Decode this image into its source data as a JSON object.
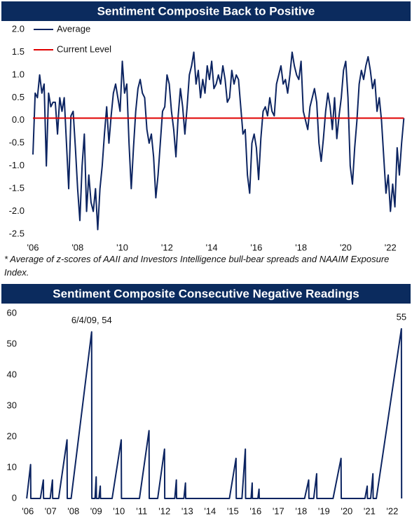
{
  "chart_data": [
    {
      "type": "line",
      "title": "Sentiment Composite Back to Positive",
      "footnote": "* Average of z-scores of AAII and Investors Intelligence bull-bear spreads and NAAIM Exposure Index.",
      "x": [
        2006.0,
        2006.1,
        2006.2,
        2006.3,
        2006.4,
        2006.5,
        2006.6,
        2006.7,
        2006.8,
        2006.9,
        2007.0,
        2007.1,
        2007.2,
        2007.3,
        2007.4,
        2007.5,
        2007.6,
        2007.7,
        2007.8,
        2007.9,
        2008.0,
        2008.1,
        2008.2,
        2008.3,
        2008.4,
        2008.5,
        2008.6,
        2008.7,
        2008.8,
        2008.9,
        2009.0,
        2009.1,
        2009.2,
        2009.3,
        2009.4,
        2009.5,
        2009.6,
        2009.7,
        2009.8,
        2009.9,
        2010.0,
        2010.1,
        2010.2,
        2010.3,
        2010.4,
        2010.5,
        2010.6,
        2010.7,
        2010.8,
        2010.9,
        2011.0,
        2011.1,
        2011.2,
        2011.3,
        2011.4,
        2011.5,
        2011.6,
        2011.7,
        2011.8,
        2011.9,
        2012.0,
        2012.1,
        2012.2,
        2012.3,
        2012.4,
        2012.5,
        2012.6,
        2012.7,
        2012.8,
        2012.9,
        2013.0,
        2013.1,
        2013.2,
        2013.3,
        2013.4,
        2013.5,
        2013.6,
        2013.7,
        2013.8,
        2013.9,
        2014.0,
        2014.1,
        2014.2,
        2014.3,
        2014.4,
        2014.5,
        2014.6,
        2014.7,
        2014.8,
        2014.9,
        2015.0,
        2015.1,
        2015.2,
        2015.3,
        2015.4,
        2015.5,
        2015.6,
        2015.7,
        2015.8,
        2015.9,
        2016.0,
        2016.1,
        2016.2,
        2016.3,
        2016.4,
        2016.5,
        2016.6,
        2016.7,
        2016.8,
        2016.9,
        2017.0,
        2017.1,
        2017.2,
        2017.3,
        2017.4,
        2017.5,
        2017.6,
        2017.7,
        2017.8,
        2017.9,
        2018.0,
        2018.1,
        2018.2,
        2018.3,
        2018.4,
        2018.5,
        2018.6,
        2018.7,
        2018.8,
        2018.9,
        2019.0,
        2019.1,
        2019.2,
        2019.3,
        2019.4,
        2019.5,
        2019.6,
        2019.7,
        2019.8,
        2019.9,
        2020.0,
        2020.1,
        2020.2,
        2020.3,
        2020.4,
        2020.5,
        2020.6,
        2020.7,
        2020.8,
        2020.9,
        2021.0,
        2021.1,
        2021.2,
        2021.3,
        2021.4,
        2021.5,
        2021.6,
        2021.7,
        2021.8,
        2021.9,
        2022.0,
        2022.1,
        2022.2,
        2022.3,
        2022.4,
        2022.5,
        2022.6
      ],
      "series": [
        {
          "name": "Average",
          "color": "#0c2461",
          "values": [
            -0.75,
            0.6,
            0.5,
            1.0,
            0.6,
            0.8,
            -1.0,
            0.6,
            0.3,
            0.4,
            0.4,
            -0.3,
            0.5,
            0.2,
            0.5,
            -0.5,
            -1.5,
            0.1,
            0.2,
            -0.6,
            -1.5,
            -2.2,
            -1.0,
            -0.3,
            -2.0,
            -1.2,
            -1.8,
            -2.0,
            -1.5,
            -2.4,
            -1.5,
            -1.0,
            -0.3,
            0.3,
            -0.5,
            0.1,
            0.6,
            0.8,
            0.5,
            0.2,
            1.3,
            0.6,
            0.8,
            -0.5,
            -1.5,
            -0.6,
            0.2,
            0.7,
            0.9,
            0.6,
            0.5,
            -0.2,
            -0.5,
            -0.3,
            -0.8,
            -1.7,
            -1.2,
            -0.5,
            0.2,
            0.3,
            1.0,
            0.8,
            0.2,
            -0.2,
            -0.8,
            0.1,
            0.7,
            0.3,
            -0.3,
            0.3,
            1.0,
            1.2,
            1.5,
            0.8,
            1.1,
            0.5,
            0.9,
            0.6,
            1.2,
            0.9,
            1.3,
            0.7,
            0.8,
            1.0,
            0.8,
            1.2,
            0.9,
            0.4,
            0.5,
            1.1,
            0.8,
            1.0,
            0.9,
            0.3,
            -0.3,
            -0.2,
            -1.2,
            -1.6,
            -0.5,
            -0.3,
            -0.6,
            -1.3,
            -0.4,
            0.2,
            0.3,
            0.1,
            0.5,
            0.2,
            0.1,
            0.8,
            1.0,
            1.2,
            0.8,
            0.9,
            0.6,
            1.0,
            1.5,
            1.2,
            1.0,
            0.9,
            1.3,
            0.2,
            0.0,
            -0.2,
            0.3,
            0.5,
            0.7,
            0.4,
            -0.5,
            -0.9,
            -0.4,
            0.2,
            0.6,
            0.3,
            -0.2,
            0.5,
            -0.4,
            0.1,
            0.5,
            1.1,
            1.3,
            0.5,
            -1.0,
            -1.4,
            -0.6,
            0.0,
            0.8,
            1.1,
            0.9,
            1.2,
            1.4,
            1.1,
            0.7,
            0.9,
            0.2,
            0.5,
            0.0,
            -0.8,
            -1.6,
            -1.2,
            -2.0,
            -1.4,
            -1.9,
            -0.6,
            -1.2,
            -0.5,
            0.05
          ]
        }
      ],
      "reference_line": {
        "name": "Current Level",
        "color": "#e00000",
        "value": 0.05
      },
      "legend": "top-left",
      "xlim": [
        2005.78,
        2022.62
      ],
      "xticks": [
        {
          "value": 2006,
          "label": "'06"
        },
        {
          "value": 2008,
          "label": "'08"
        },
        {
          "value": 2010,
          "label": "'10"
        },
        {
          "value": 2012,
          "label": "'12"
        },
        {
          "value": 2014,
          "label": "'14"
        },
        {
          "value": 2016,
          "label": "'16"
        },
        {
          "value": 2018,
          "label": "'18"
        },
        {
          "value": 2020,
          "label": "'20"
        },
        {
          "value": 2022,
          "label": "'22"
        }
      ],
      "ylim": [
        -2.5,
        2.0
      ],
      "yticks": [
        {
          "value": 2.0,
          "label": "2.0"
        },
        1.5,
        {
          "value": 1.0,
          "label": "1.0"
        },
        0.5,
        {
          "value": 0.0,
          "label": "0.0"
        },
        -0.5,
        {
          "value": -1.0,
          "label": "-1.0"
        },
        -1.5,
        {
          "value": -2.0,
          "label": "-2.0"
        },
        -2.5
      ]
    },
    {
      "type": "line",
      "title": "Sentiment Composite Consecutive Negative Readings",
      "x": [
        2005.95,
        2006.12,
        2006.13,
        2006.55,
        2006.68,
        2006.69,
        2006.98,
        2007.08,
        2007.09,
        2007.35,
        2007.72,
        2007.73,
        2007.9,
        2008.8,
        2008.81,
        2008.95,
        2009.0,
        2009.01,
        2009.12,
        2009.18,
        2009.19,
        2009.7,
        2010.1,
        2010.11,
        2010.9,
        2011.32,
        2011.33,
        2011.7,
        2012.0,
        2012.01,
        2012.45,
        2012.52,
        2012.53,
        2012.85,
        2012.92,
        2012.93,
        2014.85,
        2015.14,
        2015.15,
        2015.4,
        2015.55,
        2015.56,
        2015.8,
        2015.85,
        2015.86,
        2016.1,
        2016.15,
        2016.16,
        2018.15,
        2018.33,
        2018.34,
        2018.55,
        2018.68,
        2018.69,
        2019.4,
        2019.75,
        2019.76,
        2020.8,
        2020.9,
        2020.91,
        2021.05,
        2021.15,
        2021.16,
        2021.3,
        2022.4,
        2022.41
      ],
      "series": [
        {
          "name": null,
          "color": "#0c2461",
          "values": [
            0,
            11,
            0,
            0,
            6,
            0,
            0,
            6,
            0,
            0,
            19,
            0,
            0,
            54,
            0,
            0,
            7,
            0,
            0,
            4,
            0,
            0,
            19,
            0,
            0,
            22,
            0,
            0,
            16,
            0,
            0,
            6,
            0,
            0,
            5,
            0,
            0,
            13,
            0,
            0,
            16,
            0,
            0,
            5,
            0,
            0,
            3,
            0,
            0,
            6,
            0,
            0,
            8,
            0,
            0,
            13,
            0,
            0,
            4,
            0,
            0,
            8,
            0,
            0,
            55,
            0
          ]
        }
      ],
      "annotations": [
        {
          "text": "6/4/09, 54",
          "x": 2008.8,
          "y": 54
        },
        {
          "text": "55",
          "x": 2022.4,
          "y": 55
        }
      ],
      "xlim": [
        2005.7,
        2022.62
      ],
      "xticks": [
        {
          "value": 2006,
          "label": "'06"
        },
        {
          "value": 2007,
          "label": "'07"
        },
        {
          "value": 2008,
          "label": "'08"
        },
        {
          "value": 2009,
          "label": "'09"
        },
        {
          "value": 2010,
          "label": "'10"
        },
        {
          "value": 2011,
          "label": "'11"
        },
        {
          "value": 2012,
          "label": "'12"
        },
        {
          "value": 2013,
          "label": "'13"
        },
        {
          "value": 2014,
          "label": "'14"
        },
        {
          "value": 2015,
          "label": "'15"
        },
        {
          "value": 2016,
          "label": "'16"
        },
        {
          "value": 2017,
          "label": "'17"
        },
        {
          "value": 2018,
          "label": "'18"
        },
        {
          "value": 2019,
          "label": "'19"
        },
        {
          "value": 2020,
          "label": "'20"
        },
        {
          "value": 2021,
          "label": "'21"
        },
        {
          "value": 2022,
          "label": "'22"
        }
      ],
      "ylim": [
        0,
        60
      ],
      "yticks": [
        0,
        10,
        20,
        30,
        40,
        50,
        60
      ]
    }
  ]
}
